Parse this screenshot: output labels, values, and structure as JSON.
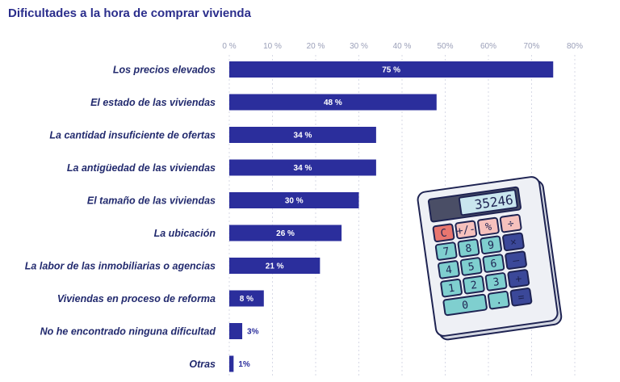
{
  "chart_data": {
    "type": "bar",
    "orientation": "horizontal",
    "title": "Dificultades a la hora de comprar vivienda",
    "x_ticks": [
      "0 %",
      "10 %",
      "20 %",
      "30 %",
      "40 %",
      "50%",
      "60%",
      "70%",
      "80%"
    ],
    "xlim": [
      0,
      80
    ],
    "grid": true,
    "categories": [
      "Los precios elevados",
      "El estado de las viviendas",
      "La cantidad insuficiente de ofertas",
      "La antigüedad de las viviendas",
      "El tamaño de las viviendas",
      "La ubicación",
      "La labor de las inmobiliarias o agencias",
      "Viviendas en proceso de reforma",
      "No he encontrado ninguna dificultad",
      "Otras"
    ],
    "values": [
      75,
      48,
      34,
      34,
      30,
      26,
      21,
      8,
      3,
      1
    ],
    "value_labels": [
      "75 %",
      "48 %",
      "34 %",
      "34 %",
      "30 %",
      "26 %",
      "21 %",
      "8 %",
      "3%",
      "1%"
    ],
    "bar_color": "#2b2e9c",
    "title_color": "#2b2e8c"
  },
  "calculator": {
    "display": "35246",
    "keys": [
      [
        "C",
        "+/-",
        "%",
        "÷"
      ],
      [
        "7",
        "8",
        "9",
        "×"
      ],
      [
        "4",
        "5",
        "6",
        "—"
      ],
      [
        "1",
        "2",
        "3",
        "+"
      ],
      [
        "0",
        ".",
        "="
      ]
    ]
  }
}
